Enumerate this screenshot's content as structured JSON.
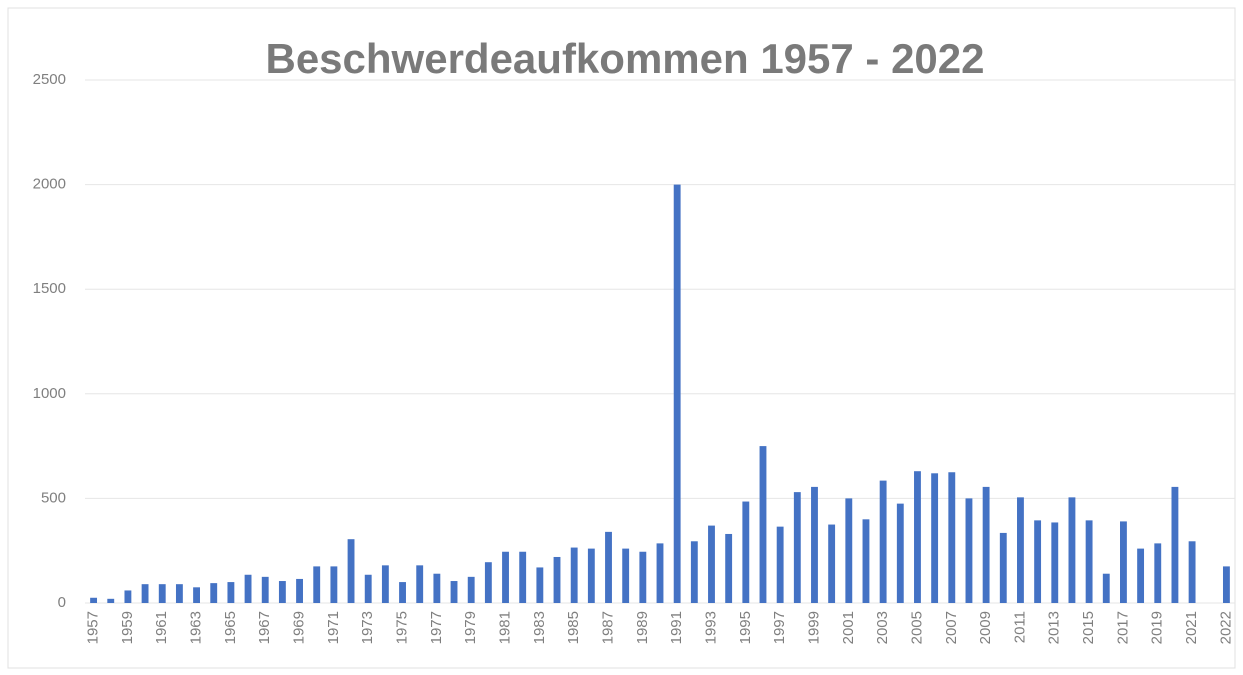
{
  "chart_data": {
    "type": "bar",
    "title": "Beschwerdeaufkommen 1957 - 2022",
    "categories": [
      "1957",
      null,
      "1959",
      null,
      "1961",
      null,
      "1963",
      null,
      "1965",
      null,
      "1967",
      null,
      "1969",
      null,
      "1971",
      null,
      "1973",
      null,
      "1975",
      null,
      "1977",
      null,
      "1979",
      null,
      "1981",
      null,
      "1983",
      null,
      "1985",
      null,
      "1987",
      null,
      "1989",
      null,
      "1991",
      null,
      "1993",
      null,
      "1995",
      null,
      "1997",
      null,
      "1999",
      null,
      "2001",
      null,
      "2003",
      null,
      "2005",
      null,
      "2007",
      null,
      "2009",
      null,
      "2011",
      null,
      "2013",
      null,
      "2015",
      null,
      "2017",
      null,
      "2019",
      null,
      "2021",
      null,
      "2022"
    ],
    "values": [
      25,
      20,
      60,
      90,
      90,
      90,
      75,
      95,
      100,
      135,
      125,
      105,
      115,
      175,
      175,
      305,
      135,
      180,
      100,
      180,
      140,
      105,
      125,
      195,
      245,
      245,
      170,
      220,
      265,
      260,
      340,
      260,
      245,
      285,
      2000,
      295,
      370,
      330,
      485,
      750,
      365,
      530,
      555,
      375,
      500,
      400,
      585,
      475,
      630,
      620,
      625,
      500,
      555,
      335,
      505,
      395,
      385,
      505,
      395,
      140,
      390,
      260,
      285,
      555,
      295,
      null,
      175
    ],
    "color": "#4472c4",
    "ylim": [
      0,
      2500
    ],
    "yticks": [
      0,
      500,
      1000,
      1500,
      2000,
      2500
    ],
    "grid": true
  }
}
